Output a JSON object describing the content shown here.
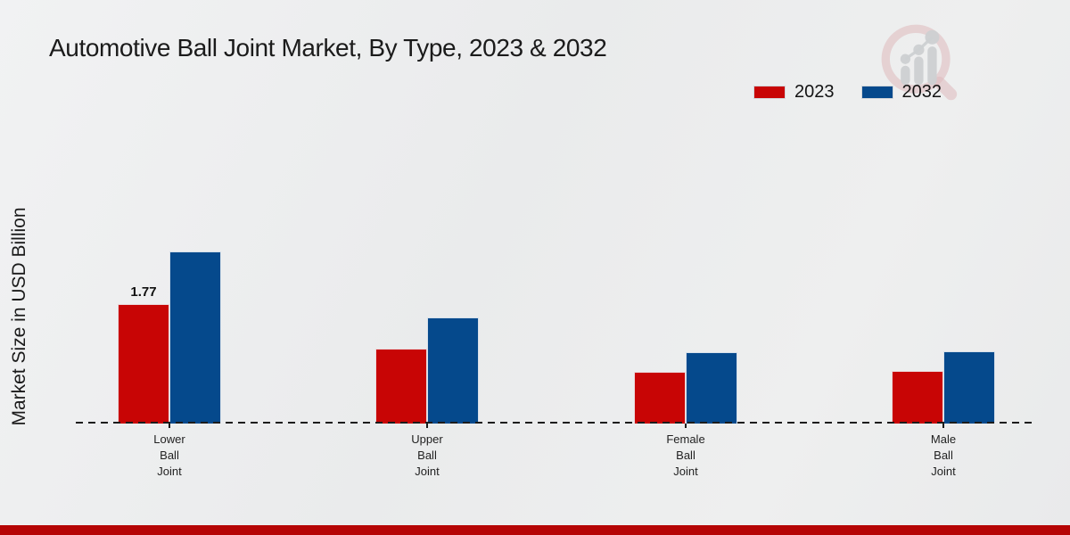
{
  "title": "Automotive Ball Joint Market, By Type, 2023 & 2032",
  "ylabel": "Market Size in USD Billion",
  "footer_bar_color": "#b50505",
  "watermark_icon": "magnifier-growth-chart-logo",
  "chart_data": {
    "type": "bar",
    "title": "Automotive Ball Joint Market, By Type, 2023 & 2032",
    "xlabel": "",
    "ylabel": "Market Size in USD Billion",
    "categories": [
      "Lower Ball Joint",
      "Upper Ball Joint",
      "Female Ball Joint",
      "Male Ball Joint"
    ],
    "series": [
      {
        "name": "2023",
        "color": "#c80505",
        "values": [
          1.77,
          1.11,
          0.77,
          0.78
        ],
        "value_labels": [
          "1.77",
          "",
          "",
          ""
        ]
      },
      {
        "name": "2032",
        "color": "#05498c",
        "values": [
          2.55,
          1.57,
          1.06,
          1.07
        ],
        "value_labels": [
          "",
          "",
          "",
          ""
        ]
      }
    ],
    "ylim": [
      0,
      3
    ],
    "grid": false,
    "y_ticks_visible": false,
    "baseline_style": "dashed",
    "legend_position": "top-right"
  }
}
